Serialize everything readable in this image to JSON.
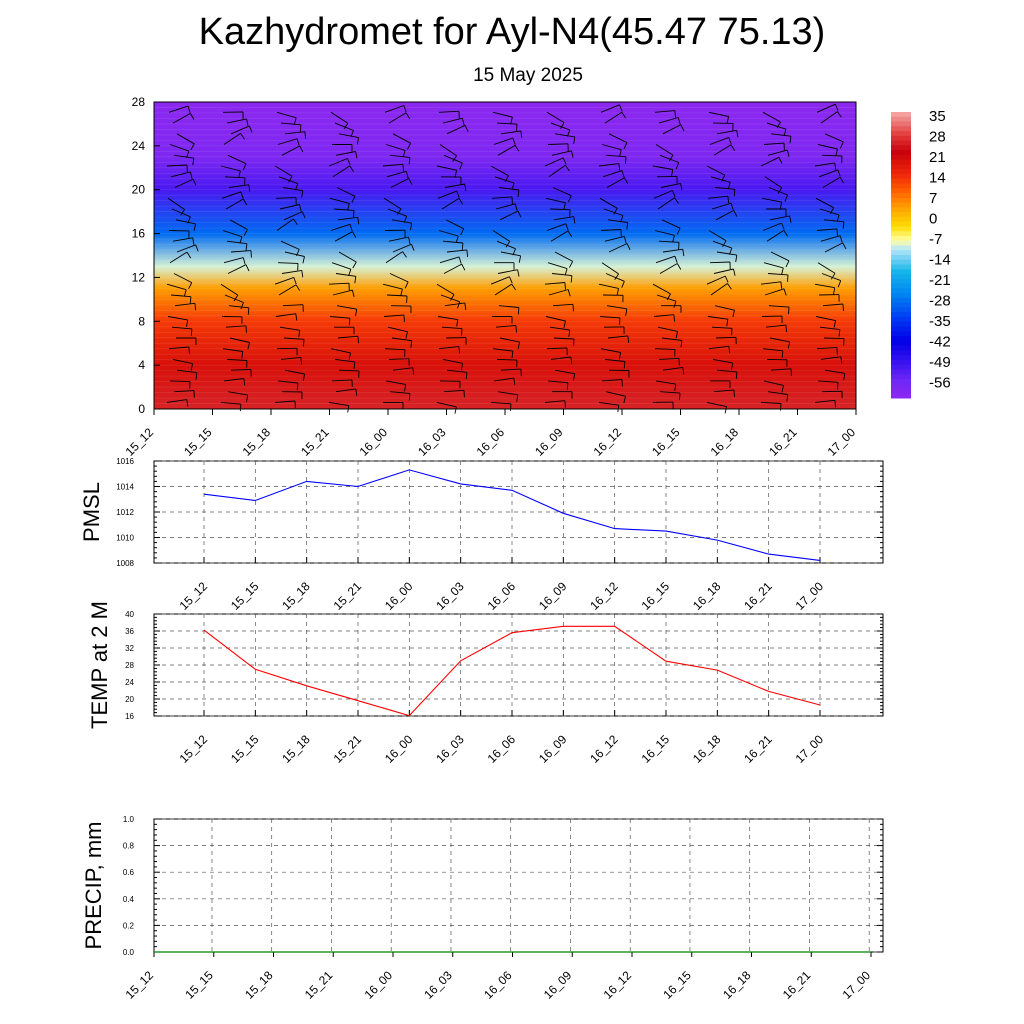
{
  "header": {
    "title": "Kazhydromet for Ayl-N4(45.47 75.13)",
    "subtitle": "15 May 2025"
  },
  "chart_data": [
    {
      "type": "heatmap",
      "description_of_axes": "time vs level",
      "x_categories": [
        "15_12",
        "15_15",
        "15_18",
        "15_21",
        "16_00",
        "16_03",
        "16_06",
        "16_09",
        "16_12",
        "16_15",
        "16_18",
        "16_21",
        "17_00"
      ],
      "y_ticks": [
        0,
        4,
        8,
        12,
        16,
        20,
        24,
        28
      ],
      "ylim": [
        0,
        28
      ],
      "colorbar_labels": [
        "35",
        "28",
        "21",
        "14",
        "7",
        "0",
        "-7",
        "-14",
        "-21",
        "-28",
        "-35",
        "-42",
        "-49",
        "-56"
      ],
      "colorbar_range": [
        -63,
        42
      ],
      "temperature_profile": [
        {
          "level": 0,
          "value": 31
        },
        {
          "level": 4,
          "value": 24
        },
        {
          "level": 8,
          "value": 17
        },
        {
          "level": 11,
          "value": 7
        },
        {
          "level": 13,
          "value": -7
        },
        {
          "level": 16,
          "value": -28
        },
        {
          "level": 20,
          "value": -52
        },
        {
          "level": 23,
          "value": -60
        },
        {
          "level": 28,
          "value": -63
        }
      ],
      "overlay": "wind barbs"
    },
    {
      "type": "line",
      "ylabel": "PMSL",
      "x": [
        "15_12",
        "15_15",
        "15_18",
        "15_21",
        "16_00",
        "16_03",
        "16_06",
        "16_09",
        "16_12",
        "16_15",
        "16_18",
        "16_21",
        "17_00"
      ],
      "values": [
        1013.4,
        1012.9,
        1014.4,
        1014.0,
        1015.3,
        1014.2,
        1013.7,
        1011.9,
        1010.7,
        1010.5,
        1009.8,
        1008.7,
        1008.2
      ],
      "ylim": [
        1008,
        1016
      ],
      "y_ticks": [
        1008,
        1010,
        1012,
        1014,
        1016
      ],
      "color": "#0000ff",
      "grid": true
    },
    {
      "type": "line",
      "ylabel": "TEMP at 2 M",
      "x": [
        "15_12",
        "15_15",
        "15_18",
        "15_21",
        "16_00",
        "16_03",
        "16_06",
        "16_09",
        "16_12",
        "16_15",
        "16_18",
        "16_21",
        "17_00"
      ],
      "values": [
        36.2,
        27.0,
        23.1,
        19.6,
        16.1,
        29.0,
        35.6,
        37.1,
        37.1,
        28.9,
        26.8,
        21.8,
        18.6
      ],
      "ylim": [
        16,
        40
      ],
      "y_ticks": [
        16,
        20,
        24,
        28,
        32,
        36,
        40
      ],
      "color": "#ff0000",
      "grid": true
    },
    {
      "type": "line",
      "ylabel": "PRECIP, mm",
      "x": [
        "15_12",
        "15_15",
        "15_18",
        "15_21",
        "16_00",
        "16_03",
        "16_06",
        "16_09",
        "16_12",
        "16_15",
        "16_18",
        "16_21",
        "17_00"
      ],
      "values": [
        0,
        0,
        0,
        0,
        0,
        0,
        0,
        0,
        0,
        0,
        0,
        0,
        0
      ],
      "ylim": [
        0.0,
        1.0
      ],
      "y_ticks": [
        "0.0",
        "0.2",
        "0.4",
        "0.6",
        "0.8",
        "1.0"
      ],
      "color": "#008000",
      "grid": true
    }
  ]
}
